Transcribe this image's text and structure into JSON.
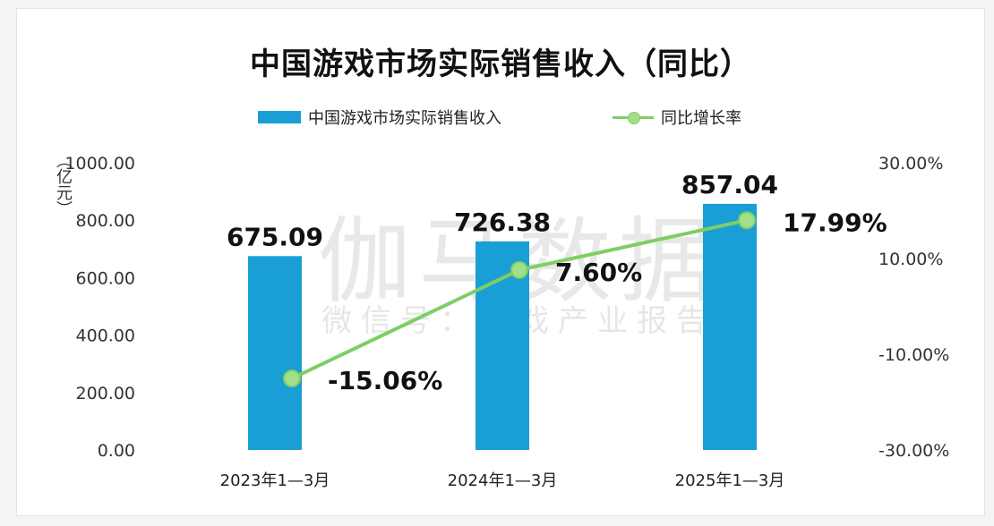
{
  "chart_data": {
    "type": "bar",
    "title": "中国游戏市场实际销售收入（同比）",
    "categories": [
      "2023年1—3月",
      "2024年1—3月",
      "2025年1—3月"
    ],
    "series": [
      {
        "name": "中国游戏市场实际销售收入",
        "type": "bar",
        "axis": "left",
        "values": [
          675.09,
          726.38,
          857.04
        ],
        "labels": [
          "675.09",
          "726.38",
          "857.04"
        ],
        "color": "#1a9ed6"
      },
      {
        "name": "同比增长率",
        "type": "line",
        "axis": "right",
        "values": [
          -15.06,
          7.6,
          17.99
        ],
        "labels": [
          "-15.06%",
          "7.60%",
          "17.99%"
        ],
        "color": "#7dcf63"
      }
    ],
    "ylabel": "（亿元）",
    "ylim": [
      0,
      1000
    ],
    "yticks": [
      "1000.00",
      "800.00",
      "600.00",
      "400.00",
      "200.00",
      "0.00"
    ],
    "y2lim": [
      -30,
      30
    ],
    "y2ticks": [
      "30.00%",
      "10.00%",
      "-10.00%",
      "-30.00%"
    ],
    "legend": "top-center",
    "grid": false,
    "watermark": {
      "main": "伽马数据",
      "sub": "微信号：游戏产业报告"
    }
  }
}
